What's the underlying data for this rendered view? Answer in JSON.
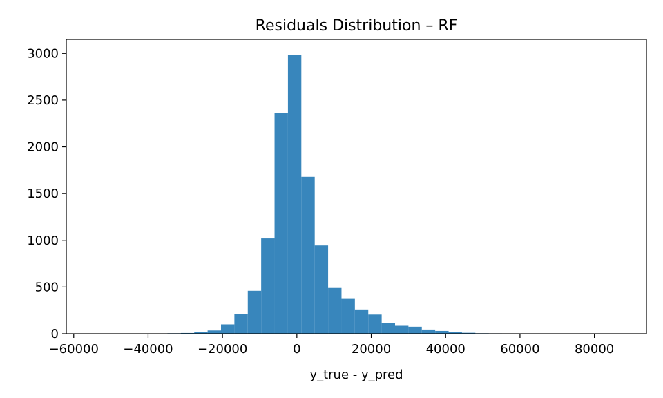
{
  "chart_data": {
    "type": "bar",
    "title": "Residuals Distribution – RF",
    "xlabel": "y_true - y_pred",
    "ylabel": "",
    "xlim": [
      -62000,
      94000
    ],
    "ylim": [
      0,
      3150
    ],
    "x_ticks": [
      -60000,
      -40000,
      -20000,
      0,
      20000,
      40000,
      60000,
      80000
    ],
    "x_tick_labels": [
      "−60000",
      "−40000",
      "−20000",
      "0",
      "20000",
      "40000",
      "60000",
      "80000"
    ],
    "y_ticks": [
      0,
      500,
      1000,
      1500,
      2000,
      2500,
      3000
    ],
    "y_tick_labels": [
      "0",
      "500",
      "1000",
      "1500",
      "2000",
      "2500",
      "3000"
    ],
    "bin_start": -60000,
    "bin_width": 3600,
    "values": [
      1,
      0,
      1,
      1,
      1,
      2,
      3,
      5,
      8,
      20,
      35,
      100,
      210,
      460,
      1020,
      2365,
      2980,
      1680,
      945,
      490,
      380,
      260,
      205,
      115,
      85,
      75,
      45,
      30,
      20,
      10,
      5,
      4,
      3,
      2,
      2,
      1,
      1,
      1,
      1,
      1
    ],
    "bar_color": "#3886bc",
    "grid": false,
    "legend": "none"
  }
}
